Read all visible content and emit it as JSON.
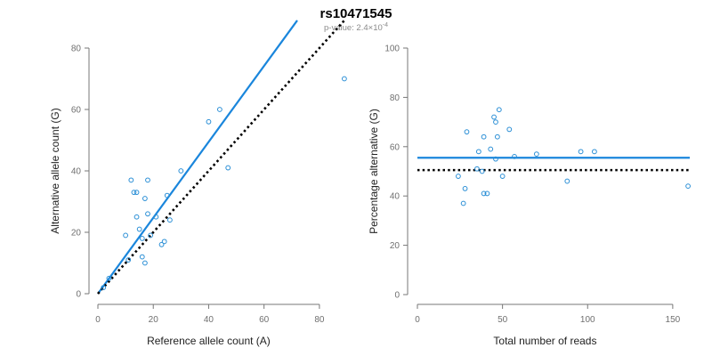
{
  "figure": {
    "title": "rs10471545",
    "subtitle_prefix": "p-value: 2.4×10",
    "subtitle_exponent": "-4",
    "point_color": "#2b8fd6",
    "fit_color": "#1a86dc",
    "reference_color": "#000000"
  },
  "chart_data": [
    {
      "type": "scatter",
      "title": "",
      "xlabel": "Reference allele count (A)",
      "ylabel": "Alternative allele count (G)",
      "xlim": [
        0,
        90
      ],
      "ylim": [
        0,
        80
      ],
      "xticks": [
        0,
        20,
        40,
        60,
        80
      ],
      "yticks": [
        0,
        20,
        40,
        60,
        80
      ],
      "grid": false,
      "points": [
        [
          2,
          2
        ],
        [
          4,
          5
        ],
        [
          10,
          19
        ],
        [
          11,
          11
        ],
        [
          12,
          37
        ],
        [
          13,
          33
        ],
        [
          14,
          25
        ],
        [
          14,
          33
        ],
        [
          15,
          21
        ],
        [
          16,
          12
        ],
        [
          16,
          18
        ],
        [
          17,
          10
        ],
        [
          17,
          31
        ],
        [
          18,
          26
        ],
        [
          18,
          37
        ],
        [
          19,
          19
        ],
        [
          21,
          25
        ],
        [
          23,
          16
        ],
        [
          24,
          17
        ],
        [
          25,
          32
        ],
        [
          26,
          24
        ],
        [
          30,
          40
        ],
        [
          40,
          56
        ],
        [
          44,
          60
        ],
        [
          47,
          41
        ],
        [
          89,
          70
        ]
      ],
      "lines": [
        {
          "name": "",
          "style": "solid",
          "from": [
            0,
            0
          ],
          "to": [
            72,
            89
          ]
        },
        {
          "name": "",
          "style": "dotted",
          "from": [
            0,
            0
          ],
          "to": [
            89,
            89
          ]
        }
      ]
    },
    {
      "type": "scatter",
      "title": "",
      "xlabel": "Total number of reads",
      "ylabel": "Percentage alternative (G)",
      "xlim": [
        0,
        160
      ],
      "ylim": [
        0,
        100
      ],
      "xticks": [
        0,
        50,
        100,
        150
      ],
      "yticks": [
        0,
        20,
        40,
        60,
        80,
        100
      ],
      "grid": false,
      "points": [
        [
          24,
          48
        ],
        [
          27,
          37
        ],
        [
          28,
          43
        ],
        [
          29,
          66
        ],
        [
          35,
          51
        ],
        [
          36,
          58
        ],
        [
          38,
          50
        ],
        [
          39,
          64
        ],
        [
          39,
          41
        ],
        [
          41,
          41
        ],
        [
          43,
          59
        ],
        [
          45,
          72
        ],
        [
          46,
          55
        ],
        [
          46,
          70
        ],
        [
          47,
          64
        ],
        [
          48,
          75
        ],
        [
          50,
          48
        ],
        [
          54,
          67
        ],
        [
          57,
          56
        ],
        [
          70,
          57
        ],
        [
          88,
          46
        ],
        [
          96,
          58
        ],
        [
          104,
          58
        ],
        [
          159,
          44
        ]
      ],
      "lines": [
        {
          "name": "",
          "style": "solid",
          "from": [
            0,
            55.5
          ],
          "to": [
            160,
            55.5
          ]
        },
        {
          "name": "",
          "style": "dotted",
          "from": [
            0,
            50.5
          ],
          "to": [
            160,
            50.5
          ]
        }
      ]
    }
  ]
}
